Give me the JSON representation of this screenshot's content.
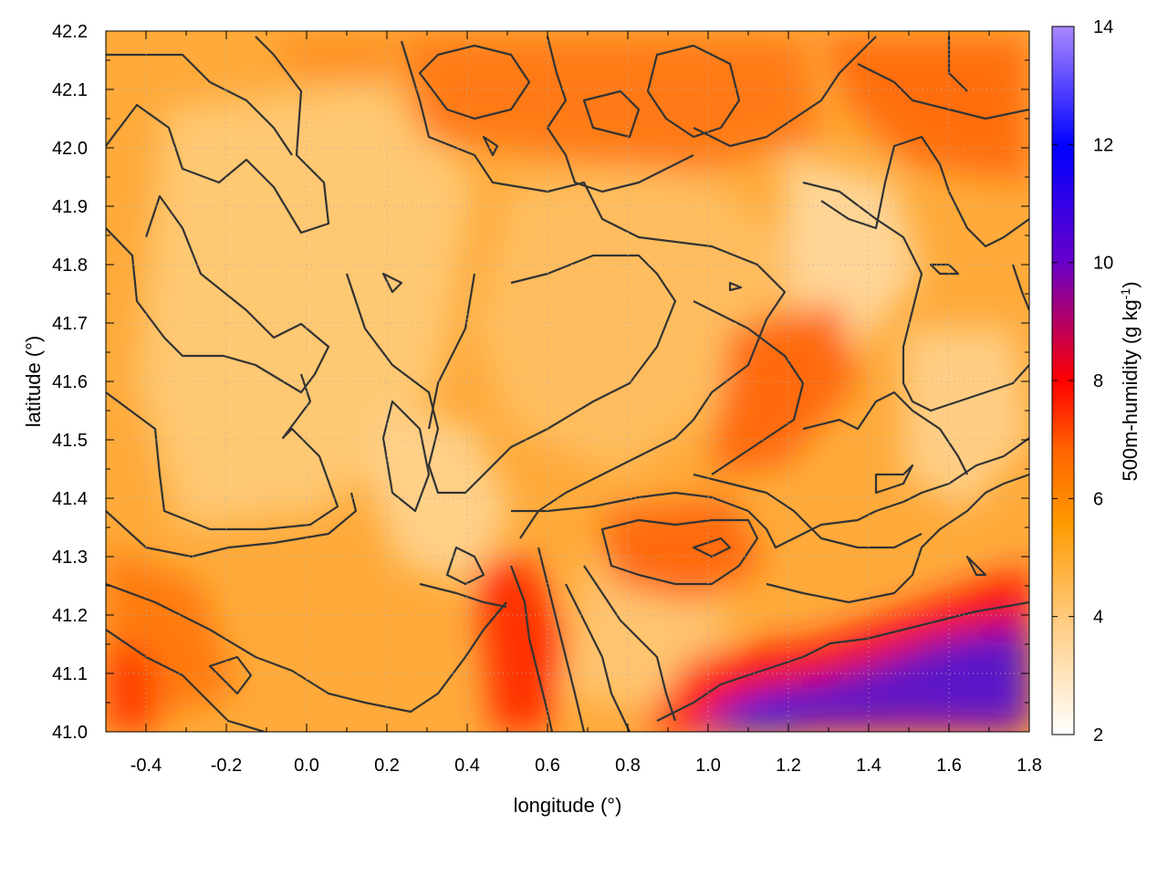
{
  "chart_data": {
    "type": "heatmap",
    "xlabel": "longitude (°)",
    "ylabel": "latitude (°)",
    "colorbar_label": "500m-humidity (g kg",
    "colorbar_label_sup": "-1",
    "colorbar_label_end": ")",
    "xlim": [
      -0.5,
      1.8
    ],
    "ylim": [
      41.0,
      42.2
    ],
    "zlim": [
      2,
      14
    ],
    "x_ticks": [
      "-0.4",
      "-0.2",
      "0.0",
      "0.2",
      "0.4",
      "0.6",
      "0.8",
      "1.0",
      "1.2",
      "1.4",
      "1.6",
      "1.8"
    ],
    "x_tick_values": [
      -0.4,
      -0.2,
      0.0,
      0.2,
      0.4,
      0.6,
      0.8,
      1.0,
      1.2,
      1.4,
      1.6,
      1.8
    ],
    "y_ticks": [
      "41.0",
      "41.1",
      "41.2",
      "41.3",
      "41.4",
      "41.5",
      "41.6",
      "41.7",
      "41.8",
      "41.9",
      "42.0",
      "42.1",
      "42.2"
    ],
    "y_tick_values": [
      41.0,
      41.1,
      41.2,
      41.3,
      41.4,
      41.5,
      41.6,
      41.7,
      41.8,
      41.9,
      42.0,
      42.1,
      42.2
    ],
    "colorbar_ticks": [
      "2",
      "4",
      "6",
      "8",
      "10",
      "12",
      "14"
    ],
    "colorbar_tick_values": [
      2,
      4,
      6,
      8,
      10,
      12,
      14
    ],
    "colormap": [
      "#ffffff",
      "#ffcc80",
      "#ff9900",
      "#ff6600",
      "#ff0000",
      "#6600cc",
      "#0000ff",
      "#aa88ff"
    ],
    "grid": true,
    "contours": true,
    "approx_field_regions": [
      {
        "region": "southeast coast (lon 0.9–1.8, lat 41.0–41.2)",
        "value_range": [
          8,
          12
        ]
      },
      {
        "region": "north-east ridge (lon 0.6–1.8, lat 42.0–42.2)",
        "value_range": [
          5,
          7
        ]
      },
      {
        "region": "central plateau (lon 0.0–0.8, lat 41.5–41.9)",
        "value_range": [
          3,
          5
        ]
      },
      {
        "region": "south-west corner (lon -0.5–-0.3, lat 41.0–41.2)",
        "value_range": [
          6,
          8
        ]
      },
      {
        "region": "pocket near lon 0.5, lat 41.25",
        "value_range": [
          7,
          9
        ]
      },
      {
        "region": "band lon 1.1–1.4, lat 41.5–41.7",
        "value_range": [
          6,
          7
        ]
      }
    ]
  }
}
